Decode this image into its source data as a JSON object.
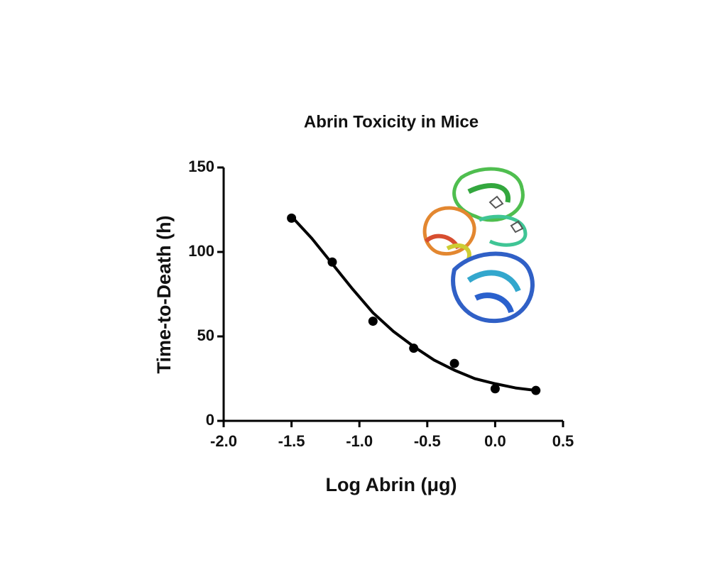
{
  "chart_data": {
    "type": "scatter",
    "title": "Abrin Toxicity in Mice",
    "xlabel": "Log Abrin (μg)",
    "ylabel": "Time-to-Death (h)",
    "xlim": [
      -2.0,
      0.5
    ],
    "xticks": [
      {
        "value": -2.0,
        "label": "-2.0"
      },
      -1.5,
      {
        "value": -1.0,
        "label": "-1.0"
      },
      -0.5,
      {
        "value": 0.0,
        "label": "0.0"
      },
      0.5
    ],
    "ylim": [
      0,
      150
    ],
    "yticks": [
      0,
      50,
      100,
      150
    ],
    "series": [
      {
        "type": "scatter",
        "color": "#000000",
        "x": [
          -1.5,
          -1.2,
          -0.9,
          -0.6,
          -0.3,
          0.0,
          0.3
        ],
        "values": [
          120,
          94,
          59,
          43,
          34,
          19,
          18
        ]
      },
      {
        "type": "line",
        "color": "#000000",
        "x": [
          -1.5,
          -1.35,
          -1.2,
          -1.05,
          -0.9,
          -0.75,
          -0.6,
          -0.45,
          -0.3,
          -0.15,
          0.0,
          0.15,
          0.3
        ],
        "values": [
          121,
          108,
          93,
          78,
          64,
          53,
          44,
          36,
          30,
          25,
          22,
          19.5,
          18
        ]
      }
    ]
  }
}
